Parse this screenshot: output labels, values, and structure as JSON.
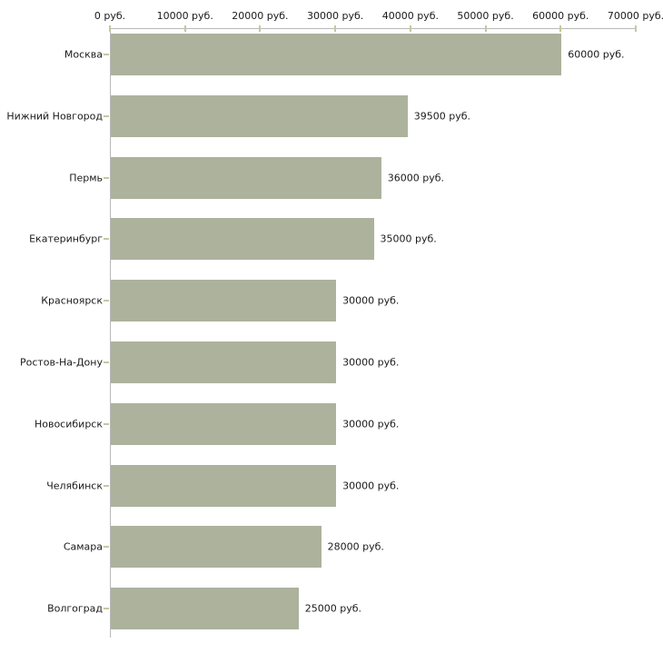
{
  "chart_data": {
    "type": "bar",
    "orientation": "horizontal",
    "title": "",
    "xlabel": "",
    "ylabel": "",
    "unit_suffix": "руб.",
    "categories": [
      "Москва",
      "Нижний Новгород",
      "Пермь",
      "Екатеринбург",
      "Красноярск",
      "Ростов-На-Дону",
      "Новосибирск",
      "Челябинск",
      "Самара",
      "Волгоград"
    ],
    "values": [
      60000,
      39500,
      36000,
      35000,
      30000,
      30000,
      30000,
      30000,
      28000,
      25000
    ],
    "value_labels": [
      "60000 руб.",
      "39500 руб.",
      "36000 руб.",
      "35000 руб.",
      "30000 руб.",
      "30000 руб.",
      "30000 руб.",
      "30000 руб.",
      "28000 руб.",
      "25000 руб."
    ],
    "x_ticks": [
      0,
      10000,
      20000,
      30000,
      40000,
      50000,
      60000,
      70000
    ],
    "x_tick_labels": [
      "0 руб.",
      "10000 руб.",
      "20000 руб.",
      "30000 руб.",
      "40000 руб.",
      "50000 руб.",
      "60000 руб.",
      "70000 руб."
    ],
    "xlim": [
      0,
      70000
    ],
    "grid": false,
    "legend": false,
    "bar_color": "#acb29c",
    "axis_color": "#b9b9b9",
    "tick_color": "#c9c69e",
    "text_color": "#1a1a1a",
    "background_color": "#ffffff"
  }
}
